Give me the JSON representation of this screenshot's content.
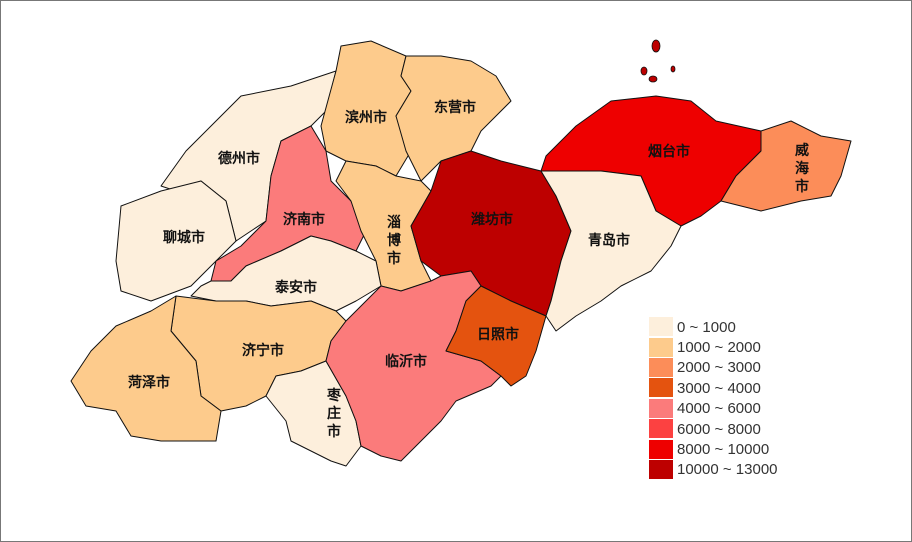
{
  "legend": [
    {
      "label": "0 ~ 1000",
      "color": "#fdefdc"
    },
    {
      "label": "1000 ~ 2000",
      "color": "#fdcb8c"
    },
    {
      "label": "2000 ~ 3000",
      "color": "#fc8d59"
    },
    {
      "label": "3000 ~ 4000",
      "color": "#e4530f"
    },
    {
      "label": "4000 ~ 6000",
      "color": "#fb7b7b"
    },
    {
      "label": "6000 ~ 8000",
      "color": "#fc4141"
    },
    {
      "label": "8000 ~ 10000",
      "color": "#ee0000"
    },
    {
      "label": "10000 ~ 13000",
      "color": "#bd0000"
    }
  ],
  "regions": [
    {
      "name": "德州市",
      "class": 0
    },
    {
      "name": "聊城市",
      "class": 0
    },
    {
      "name": "滨州市",
      "class": 1
    },
    {
      "name": "东营市",
      "class": 1
    },
    {
      "name": "济南市",
      "class": 4
    },
    {
      "name": "淄博市",
      "class": 1
    },
    {
      "name": "潍坊市",
      "class": 7
    },
    {
      "name": "烟台市",
      "class": 6
    },
    {
      "name": "威海市",
      "class": 2
    },
    {
      "name": "青岛市",
      "class": 0
    },
    {
      "name": "泰安市",
      "class": 0
    },
    {
      "name": "济宁市",
      "class": 1
    },
    {
      "name": "菏泽市",
      "class": 1
    },
    {
      "name": "枣庄市",
      "class": 0
    },
    {
      "name": "临沂市",
      "class": 4
    },
    {
      "name": "日照市",
      "class": 3
    }
  ]
}
